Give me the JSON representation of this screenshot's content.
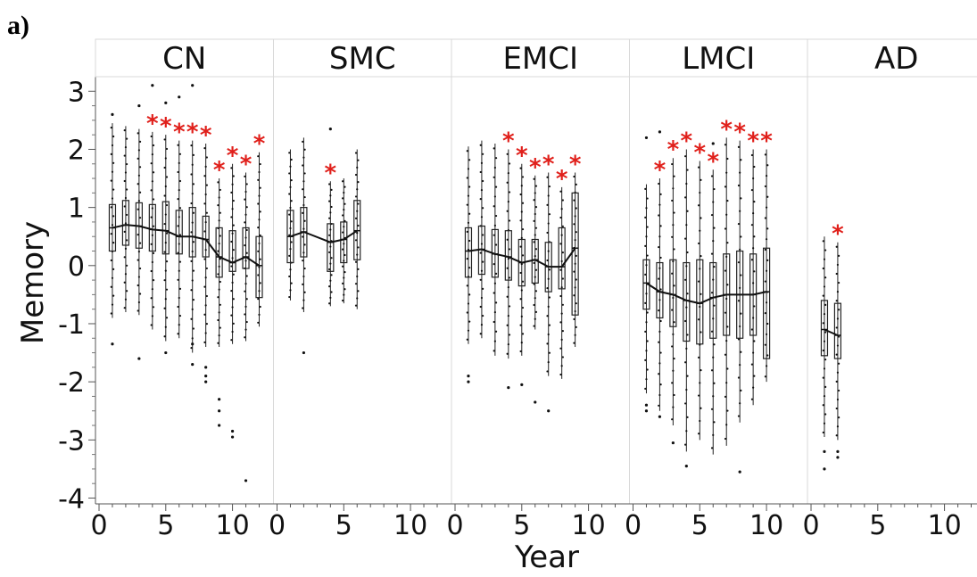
{
  "figure_label": "a)",
  "accent_colors": {
    "significance": "#e0201b",
    "box": "#000000",
    "strip_bg": "#ffffff",
    "grid": "#d9d9d9"
  },
  "chart_data": {
    "type": "box",
    "xlabel": "Year",
    "ylabel": "Memory",
    "ylim": [
      -4,
      3.3
    ],
    "yticks": [
      "3",
      "2",
      "1",
      "0",
      "-1",
      "-2",
      "-3",
      "-4"
    ],
    "xlim": [
      0,
      12
    ],
    "xticks": [
      "0",
      "5",
      "10"
    ],
    "significance_marker": "*",
    "panels": [
      {
        "name": "CN",
        "boxes": [
          {
            "year": 1,
            "q1": 0.25,
            "med": 0.65,
            "q3": 1.05,
            "lo": -0.9,
            "hi": 2.45,
            "sig": false
          },
          {
            "year": 2,
            "q1": 0.35,
            "med": 0.7,
            "q3": 1.12,
            "lo": -0.8,
            "hi": 2.4,
            "sig": false
          },
          {
            "year": 3,
            "q1": 0.3,
            "med": 0.68,
            "q3": 1.08,
            "lo": -0.85,
            "hi": 2.35,
            "sig": false
          },
          {
            "year": 4,
            "q1": 0.25,
            "med": 0.62,
            "q3": 1.05,
            "lo": -1.1,
            "hi": 2.3,
            "sig": true
          },
          {
            "year": 5,
            "q1": 0.2,
            "med": 0.6,
            "q3": 1.1,
            "lo": -1.3,
            "hi": 2.25,
            "sig": true
          },
          {
            "year": 6,
            "q1": 0.2,
            "med": 0.5,
            "q3": 0.95,
            "lo": -1.25,
            "hi": 2.15,
            "sig": true
          },
          {
            "year": 7,
            "q1": 0.15,
            "med": 0.5,
            "q3": 1.0,
            "lo": -1.5,
            "hi": 2.15,
            "sig": true
          },
          {
            "year": 8,
            "q1": 0.15,
            "med": 0.45,
            "q3": 0.85,
            "lo": -1.4,
            "hi": 2.1,
            "sig": true
          },
          {
            "year": 9,
            "q1": -0.2,
            "med": 0.15,
            "q3": 0.65,
            "lo": -1.4,
            "hi": 1.5,
            "sig": true
          },
          {
            "year": 10,
            "q1": -0.1,
            "med": 0.05,
            "q3": 0.6,
            "lo": -1.35,
            "hi": 1.75,
            "sig": true
          },
          {
            "year": 11,
            "q1": -0.05,
            "med": 0.15,
            "q3": 0.65,
            "lo": -1.3,
            "hi": 1.6,
            "sig": true
          },
          {
            "year": 12,
            "q1": -0.55,
            "med": 0.0,
            "q3": 0.5,
            "lo": -1.05,
            "hi": 1.95,
            "sig": true
          }
        ],
        "outliers": [
          [
            1,
            2.6
          ],
          [
            1,
            -1.35
          ],
          [
            3,
            2.75
          ],
          [
            3,
            -1.6
          ],
          [
            4,
            3.1
          ],
          [
            5,
            2.8
          ],
          [
            5,
            -1.5
          ],
          [
            6,
            2.9
          ],
          [
            7,
            3.1
          ],
          [
            7,
            -1.7
          ],
          [
            7,
            -1.35
          ],
          [
            8,
            -1.75
          ],
          [
            8,
            -1.9
          ],
          [
            8,
            -2.0
          ],
          [
            9,
            -2.3
          ],
          [
            9,
            -2.5
          ],
          [
            9,
            -2.75
          ],
          [
            10,
            -2.85
          ],
          [
            10,
            -2.95
          ],
          [
            11,
            -3.7
          ]
        ]
      },
      {
        "name": "SMC",
        "boxes": [
          {
            "year": 1,
            "q1": 0.05,
            "med": 0.5,
            "q3": 0.95,
            "lo": -0.6,
            "hi": 2.0,
            "sig": false
          },
          {
            "year": 2,
            "q1": 0.15,
            "med": 0.58,
            "q3": 1.0,
            "lo": -0.8,
            "hi": 2.2,
            "sig": false
          },
          {
            "year": 4,
            "q1": -0.1,
            "med": 0.4,
            "q3": 0.72,
            "lo": -0.7,
            "hi": 1.45,
            "sig": true
          },
          {
            "year": 5,
            "q1": 0.05,
            "med": 0.45,
            "q3": 0.75,
            "lo": -0.65,
            "hi": 1.5,
            "sig": false
          },
          {
            "year": 6,
            "q1": 0.1,
            "med": 0.6,
            "q3": 1.12,
            "lo": -0.75,
            "hi": 2.0,
            "sig": false
          }
        ],
        "outliers": [
          [
            2,
            -1.5
          ],
          [
            4,
            2.35
          ]
        ]
      },
      {
        "name": "EMCI",
        "boxes": [
          {
            "year": 1,
            "q1": -0.2,
            "med": 0.25,
            "q3": 0.65,
            "lo": -1.35,
            "hi": 2.05,
            "sig": false
          },
          {
            "year": 2,
            "q1": -0.15,
            "med": 0.28,
            "q3": 0.68,
            "lo": -1.25,
            "hi": 2.15,
            "sig": false
          },
          {
            "year": 3,
            "q1": -0.2,
            "med": 0.2,
            "q3": 0.62,
            "lo": -1.55,
            "hi": 2.1,
            "sig": false
          },
          {
            "year": 4,
            "q1": -0.25,
            "med": 0.15,
            "q3": 0.6,
            "lo": -1.6,
            "hi": 2.0,
            "sig": true
          },
          {
            "year": 5,
            "q1": -0.35,
            "med": 0.05,
            "q3": 0.45,
            "lo": -1.55,
            "hi": 1.75,
            "sig": true
          },
          {
            "year": 6,
            "q1": -0.3,
            "med": 0.1,
            "q3": 0.45,
            "lo": -1.1,
            "hi": 1.55,
            "sig": true
          },
          {
            "year": 7,
            "q1": -0.45,
            "med": -0.02,
            "q3": 0.4,
            "lo": -1.9,
            "hi": 1.6,
            "sig": true
          },
          {
            "year": 8,
            "q1": -0.4,
            "med": -0.02,
            "q3": 0.65,
            "lo": -1.95,
            "hi": 1.35,
            "sig": true
          },
          {
            "year": 9,
            "q1": -0.85,
            "med": 0.3,
            "q3": 1.25,
            "lo": -1.4,
            "hi": 1.6,
            "sig": true
          }
        ],
        "outliers": [
          [
            1,
            -1.9
          ],
          [
            1,
            -2.0
          ],
          [
            4,
            -2.1
          ],
          [
            5,
            -2.05
          ],
          [
            6,
            -2.35
          ],
          [
            7,
            -2.5
          ]
        ]
      },
      {
        "name": "LMCI",
        "boxes": [
          {
            "year": 1,
            "q1": -0.75,
            "med": -0.3,
            "q3": 0.1,
            "lo": -2.2,
            "hi": 1.4,
            "sig": false
          },
          {
            "year": 2,
            "q1": -0.9,
            "med": -0.45,
            "q3": 0.05,
            "lo": -2.5,
            "hi": 1.5,
            "sig": true
          },
          {
            "year": 3,
            "q1": -1.05,
            "med": -0.5,
            "q3": 0.1,
            "lo": -2.75,
            "hi": 1.85,
            "sig": true
          },
          {
            "year": 4,
            "q1": -1.3,
            "med": -0.6,
            "q3": 0.05,
            "lo": -3.2,
            "hi": 2.0,
            "sig": true
          },
          {
            "year": 5,
            "q1": -1.35,
            "med": -0.65,
            "q3": 0.1,
            "lo": -3.0,
            "hi": 1.8,
            "sig": true
          },
          {
            "year": 6,
            "q1": -1.25,
            "med": -0.55,
            "q3": 0.05,
            "lo": -3.25,
            "hi": 1.65,
            "sig": true
          },
          {
            "year": 7,
            "q1": -1.2,
            "med": -0.5,
            "q3": 0.2,
            "lo": -3.1,
            "hi": 2.2,
            "sig": true
          },
          {
            "year": 8,
            "q1": -1.25,
            "med": -0.5,
            "q3": 0.25,
            "lo": -2.7,
            "hi": 2.15,
            "sig": true
          },
          {
            "year": 9,
            "q1": -1.2,
            "med": -0.5,
            "q3": 0.2,
            "lo": -2.4,
            "hi": 2.0,
            "sig": true
          },
          {
            "year": 10,
            "q1": -1.6,
            "med": -0.45,
            "q3": 0.3,
            "lo": -2.0,
            "hi": 2.0,
            "sig": true
          }
        ],
        "outliers": [
          [
            1,
            2.2
          ],
          [
            1,
            -2.4
          ],
          [
            1,
            -2.5
          ],
          [
            2,
            2.3
          ],
          [
            2,
            -2.6
          ],
          [
            3,
            -3.05
          ],
          [
            4,
            -3.45
          ],
          [
            6,
            2.1
          ],
          [
            8,
            -3.55
          ]
        ]
      },
      {
        "name": "AD",
        "boxes": [
          {
            "year": 1,
            "q1": -1.55,
            "med": -1.1,
            "q3": -0.6,
            "lo": -2.95,
            "hi": 0.5,
            "sig": false
          },
          {
            "year": 2,
            "q1": -1.6,
            "med": -1.2,
            "q3": -0.65,
            "lo": -3.0,
            "hi": 0.4,
            "sig": true
          }
        ],
        "outliers": [
          [
            1,
            -3.2
          ],
          [
            1,
            -3.5
          ],
          [
            2,
            -3.2
          ],
          [
            2,
            -3.3
          ]
        ]
      }
    ]
  }
}
